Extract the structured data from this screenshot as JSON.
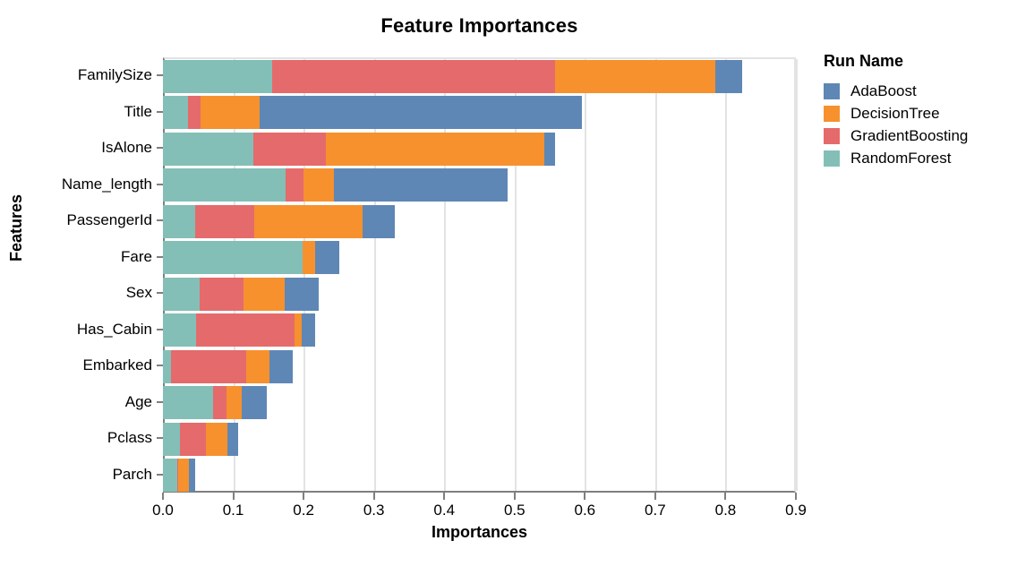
{
  "chart_data": {
    "type": "bar",
    "orientation": "horizontal",
    "stacked": true,
    "title": "Feature Importances",
    "xlabel": "Importances",
    "ylabel": "Features",
    "legend_title": "Run Name",
    "grid": true,
    "xlim": [
      0,
      0.9
    ],
    "xticks": [
      0.0,
      0.1,
      0.2,
      0.3,
      0.4,
      0.5,
      0.6,
      0.7,
      0.8,
      0.9
    ],
    "xtick_labels": [
      "0.0",
      "0.1",
      "0.2",
      "0.3",
      "0.4",
      "0.5",
      "0.6",
      "0.7",
      "0.8",
      "0.9"
    ],
    "categories": [
      "FamilySize",
      "Title",
      "IsAlone",
      "Name_length",
      "PassengerId",
      "Fare",
      "Sex",
      "Has_Cabin",
      "Embarked",
      "Age",
      "Pclass",
      "Parch"
    ],
    "series": [
      {
        "name": "RandomForest",
        "color": "#83bfb7",
        "values": [
          0.155,
          0.036,
          0.129,
          0.175,
          0.046,
          0.198,
          0.052,
          0.047,
          0.011,
          0.071,
          0.024,
          0.02
        ]
      },
      {
        "name": "GradientBoosting",
        "color": "#e56a6b",
        "values": [
          0.402,
          0.018,
          0.103,
          0.025,
          0.084,
          0.001,
          0.062,
          0.14,
          0.107,
          0.019,
          0.037,
          0.002
        ]
      },
      {
        "name": "DecisionTree",
        "color": "#f6912e",
        "values": [
          0.229,
          0.084,
          0.31,
          0.043,
          0.154,
          0.017,
          0.059,
          0.01,
          0.033,
          0.022,
          0.031,
          0.015
        ]
      },
      {
        "name": "AdaBoost",
        "color": "#5e87b5",
        "values": [
          0.038,
          0.458,
          0.016,
          0.247,
          0.046,
          0.035,
          0.049,
          0.02,
          0.033,
          0.036,
          0.015,
          0.009
        ]
      }
    ],
    "legend_order": [
      "AdaBoost",
      "DecisionTree",
      "GradientBoosting",
      "RandomForest"
    ],
    "colors": {
      "AdaBoost": "#5e87b5",
      "DecisionTree": "#f6912e",
      "GradientBoosting": "#e56a6b",
      "RandomForest": "#83bfb7",
      "gridline": "#e3e3e3",
      "axis_spine": "#7f7f7f",
      "text": "#000000",
      "background": "#ffffff"
    }
  }
}
